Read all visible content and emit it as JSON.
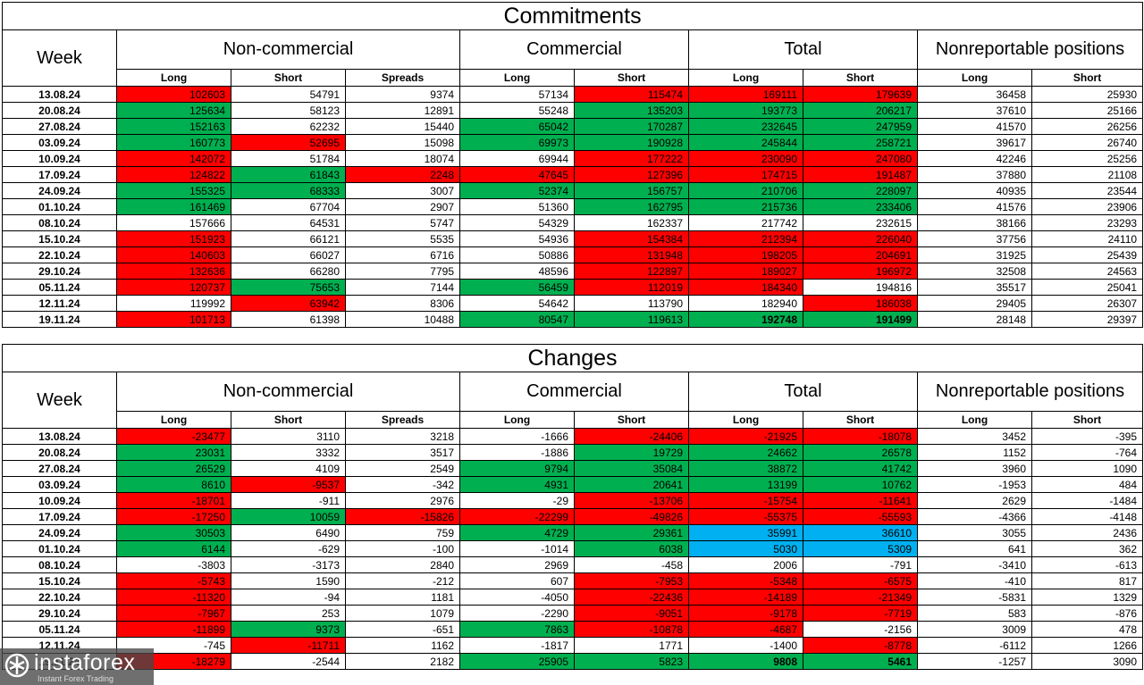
{
  "titles": {
    "commitments": "Commitments",
    "changes": "Changes"
  },
  "headers": {
    "week": "Week",
    "groups": [
      "Non-commercial",
      "Commercial",
      "Total",
      "Nonreportable positions"
    ],
    "sub": [
      "Long",
      "Short",
      "Spreads",
      "Long",
      "Short",
      "Long",
      "Short",
      "Long",
      "Short"
    ]
  },
  "commitments": [
    {
      "week": "13.08.24",
      "cells": [
        "102603",
        "54791",
        "9374",
        "57134",
        "115474",
        "169111",
        "179639",
        "36458",
        "25930"
      ],
      "colors": "rwwwrrrww"
    },
    {
      "week": "20.08.24",
      "cells": [
        "125634",
        "58123",
        "12891",
        "55248",
        "135203",
        "193773",
        "206217",
        "37610",
        "25166"
      ],
      "colors": "gwwwgggww"
    },
    {
      "week": "27.08.24",
      "cells": [
        "152163",
        "62232",
        "15440",
        "65042",
        "170287",
        "232645",
        "247959",
        "41570",
        "26256"
      ],
      "colors": "gwwggggww"
    },
    {
      "week": "03.09.24",
      "cells": [
        "160773",
        "52695",
        "15098",
        "69973",
        "190928",
        "245844",
        "258721",
        "39617",
        "26740"
      ],
      "colors": "grwggggww"
    },
    {
      "week": "10.09.24",
      "cells": [
        "142072",
        "51784",
        "18074",
        "69944",
        "177222",
        "230090",
        "247080",
        "42246",
        "25256"
      ],
      "colors": "rwwwrrrww"
    },
    {
      "week": "17.09.24",
      "cells": [
        "124822",
        "61843",
        "2248",
        "47645",
        "127396",
        "174715",
        "191487",
        "37880",
        "21108"
      ],
      "colors": "rgrrrrrww"
    },
    {
      "week": "24.09.24",
      "cells": [
        "155325",
        "68333",
        "3007",
        "52374",
        "156757",
        "210706",
        "228097",
        "40935",
        "23544"
      ],
      "colors": "ggwggggww"
    },
    {
      "week": "01.10.24",
      "cells": [
        "161469",
        "67704",
        "2907",
        "51360",
        "162795",
        "215736",
        "233406",
        "41576",
        "23906"
      ],
      "colors": "gwwwgggww"
    },
    {
      "week": "08.10.24",
      "cells": [
        "157666",
        "64531",
        "5747",
        "54329",
        "162337",
        "217742",
        "232615",
        "38166",
        "23293"
      ],
      "colors": "wwwwwwwww"
    },
    {
      "week": "15.10.24",
      "cells": [
        "151923",
        "66121",
        "5535",
        "54936",
        "154384",
        "212394",
        "226040",
        "37756",
        "24110"
      ],
      "colors": "rwwwrrrww"
    },
    {
      "week": "22.10.24",
      "cells": [
        "140603",
        "66027",
        "6716",
        "50886",
        "131948",
        "198205",
        "204691",
        "31925",
        "25439"
      ],
      "colors": "rwwwrrrww"
    },
    {
      "week": "29.10.24",
      "cells": [
        "132636",
        "66280",
        "7795",
        "48596",
        "122897",
        "189027",
        "196972",
        "32508",
        "24563"
      ],
      "colors": "rwwwrrrww"
    },
    {
      "week": "05.11.24",
      "cells": [
        "120737",
        "75653",
        "7144",
        "56459",
        "112019",
        "184340",
        "194816",
        "35517",
        "25041"
      ],
      "colors": "rgwgrrwww"
    },
    {
      "week": "12.11.24",
      "cells": [
        "119992",
        "63942",
        "8306",
        "54642",
        "113790",
        "182940",
        "186038",
        "29405",
        "26307"
      ],
      "colors": "wrwwwwrww"
    },
    {
      "week": "19.11.24",
      "cells": [
        "101713",
        "61398",
        "10488",
        "80547",
        "119613",
        "192748",
        "191499",
        "28148",
        "29397"
      ],
      "colors": "rwwggggww"
    }
  ],
  "changes": [
    {
      "week": "13.08.24",
      "cells": [
        "-23477",
        "3110",
        "3218",
        "-1666",
        "-24406",
        "-21925",
        "-18078",
        "3452",
        "-395"
      ],
      "colors": "rwwwrrrww"
    },
    {
      "week": "20.08.24",
      "cells": [
        "23031",
        "3332",
        "3517",
        "-1886",
        "19729",
        "24662",
        "26578",
        "1152",
        "-764"
      ],
      "colors": "gwwwgggww"
    },
    {
      "week": "27.08.24",
      "cells": [
        "26529",
        "4109",
        "2549",
        "9794",
        "35084",
        "38872",
        "41742",
        "3960",
        "1090"
      ],
      "colors": "gwwggggww"
    },
    {
      "week": "03.09.24",
      "cells": [
        "8610",
        "-9537",
        "-342",
        "4931",
        "20641",
        "13199",
        "10762",
        "-1953",
        "484"
      ],
      "colors": "grwggggww"
    },
    {
      "week": "10.09.24",
      "cells": [
        "-18701",
        "-911",
        "2976",
        "-29",
        "-13706",
        "-15754",
        "-11641",
        "2629",
        "-1484"
      ],
      "colors": "rwwwrrrww"
    },
    {
      "week": "17.09.24",
      "cells": [
        "-17250",
        "10059",
        "-15826",
        "-22299",
        "-49826",
        "-55375",
        "-55593",
        "-4366",
        "-4148"
      ],
      "colors": "rgrrrrrww"
    },
    {
      "week": "24.09.24",
      "cells": [
        "30503",
        "6490",
        "759",
        "4729",
        "29361",
        "35991",
        "36610",
        "3055",
        "2436"
      ],
      "colors": "gwwggbbww"
    },
    {
      "week": "01.10.24",
      "cells": [
        "6144",
        "-629",
        "-100",
        "-1014",
        "6038",
        "5030",
        "5309",
        "641",
        "362"
      ],
      "colors": "gwwwgbbww"
    },
    {
      "week": "08.10.24",
      "cells": [
        "-3803",
        "-3173",
        "2840",
        "2969",
        "-458",
        "2006",
        "-791",
        "-3410",
        "-613"
      ],
      "colors": "wwwwwwwww"
    },
    {
      "week": "15.10.24",
      "cells": [
        "-5743",
        "1590",
        "-212",
        "607",
        "-7953",
        "-5348",
        "-6575",
        "-410",
        "817"
      ],
      "colors": "rwwwrrrww"
    },
    {
      "week": "22.10.24",
      "cells": [
        "-11320",
        "-94",
        "1181",
        "-4050",
        "-22436",
        "-14189",
        "-21349",
        "-5831",
        "1329"
      ],
      "colors": "rwwwrrrww"
    },
    {
      "week": "29.10.24",
      "cells": [
        "-7967",
        "253",
        "1079",
        "-2290",
        "-9051",
        "-9178",
        "-7719",
        "583",
        "-876"
      ],
      "colors": "rwwwrrrww"
    },
    {
      "week": "05.11.24",
      "cells": [
        "-11899",
        "9373",
        "-651",
        "7863",
        "-10878",
        "-4687",
        "-2156",
        "3009",
        "478"
      ],
      "colors": "rgwgrrwww"
    },
    {
      "week": "12.11.24",
      "cells": [
        "-745",
        "-11711",
        "1162",
        "-1817",
        "1771",
        "-1400",
        "-8778",
        "-6112",
        "1266"
      ],
      "colors": "wrwwwwrww"
    },
    {
      "week": "19.11.24",
      "cells": [
        "-18279",
        "-2544",
        "2182",
        "25905",
        "5823",
        "9808",
        "5461",
        "-1257",
        "3090"
      ],
      "colors": "rwwggggww"
    }
  ],
  "bold_total_last_row": true,
  "colors": {
    "red": "#ff0000",
    "green": "#00b050",
    "blue": "#00b0f0"
  },
  "logo": {
    "name": "instaforex",
    "tagline": "Instant Forex Trading",
    "icon": "instaforex-logo-icon"
  }
}
